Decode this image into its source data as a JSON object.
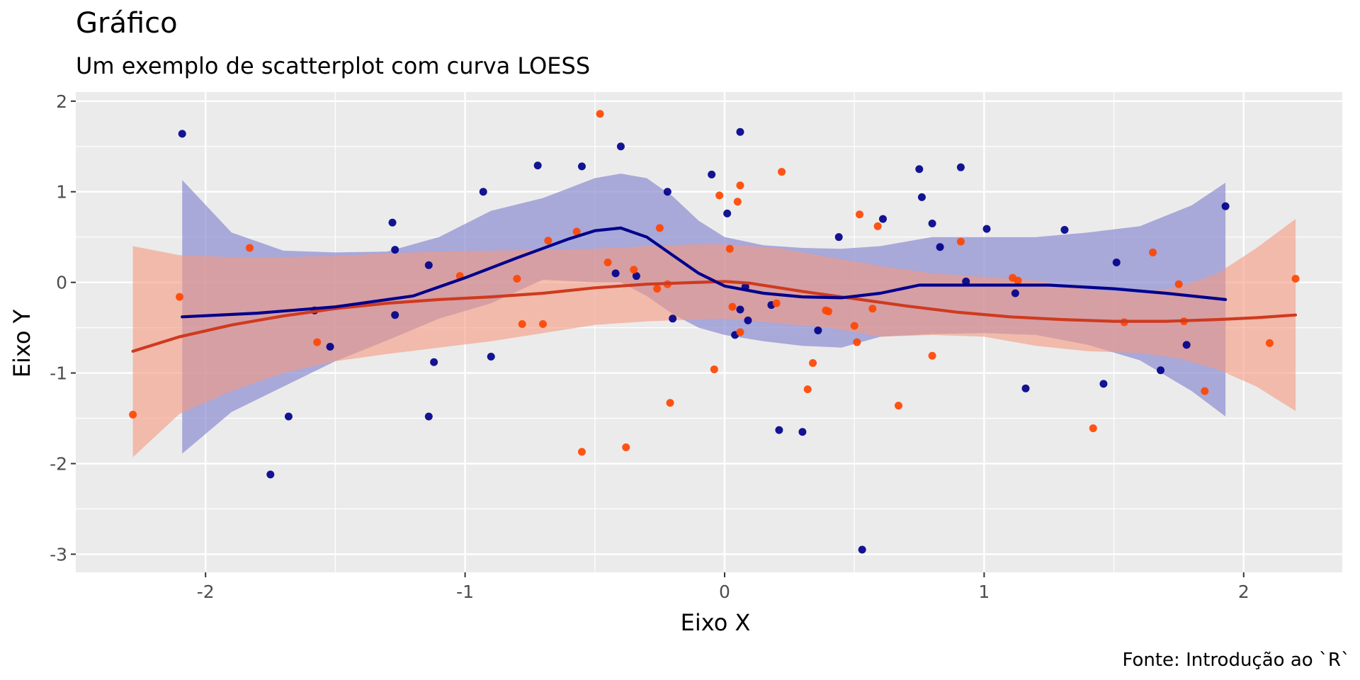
{
  "colors": {
    "group_a": "#00008B",
    "group_b": "#FF4500",
    "panel_bg": "#EBEBEB",
    "grid": "#FFFFFF"
  },
  "chart_data": {
    "type": "scatter",
    "title": "Gráfico",
    "subtitle": "Um exemplo de scatterplot com curva LOESS",
    "xlabel": "Eixo X",
    "ylabel": "Eixo Y",
    "caption": "Fonte: Introdução ao `R`",
    "xlim": [
      -2.5,
      2.38
    ],
    "ylim": [
      -3.2,
      2.1
    ],
    "x_ticks": [
      -2,
      -1,
      0,
      1,
      2
    ],
    "x_tick_labels": [
      "-2",
      "-1",
      "0",
      "1",
      "2"
    ],
    "y_ticks": [
      -3,
      -2,
      -1,
      0,
      1,
      2
    ],
    "y_tick_labels": [
      "-3",
      "-2",
      "-1",
      "0",
      "1",
      "2"
    ],
    "grid": true,
    "legend": "none",
    "series": [
      {
        "color": "#00008B",
        "points": [
          [
            -2.09,
            1.64
          ],
          [
            -1.75,
            -2.12
          ],
          [
            -1.68,
            -1.48
          ],
          [
            -1.58,
            -0.31
          ],
          [
            -1.52,
            -0.71
          ],
          [
            -1.28,
            0.66
          ],
          [
            -1.27,
            0.36
          ],
          [
            -1.27,
            -0.36
          ],
          [
            -1.14,
            0.19
          ],
          [
            -1.14,
            -1.48
          ],
          [
            -1.12,
            -0.88
          ],
          [
            -0.93,
            1.0
          ],
          [
            -0.9,
            -0.82
          ],
          [
            -0.72,
            1.29
          ],
          [
            -0.55,
            1.28
          ],
          [
            -0.4,
            1.5
          ],
          [
            -0.42,
            0.1
          ],
          [
            -0.34,
            0.07
          ],
          [
            -0.22,
            1.0
          ],
          [
            -0.2,
            -0.4
          ],
          [
            -0.05,
            1.19
          ],
          [
            0.01,
            0.76
          ],
          [
            0.04,
            -0.58
          ],
          [
            0.06,
            1.66
          ],
          [
            0.06,
            -0.3
          ],
          [
            0.08,
            -0.05
          ],
          [
            0.09,
            -0.42
          ],
          [
            0.18,
            -0.25
          ],
          [
            0.21,
            -1.63
          ],
          [
            0.3,
            -1.65
          ],
          [
            0.36,
            -0.53
          ],
          [
            0.44,
            0.5
          ],
          [
            0.53,
            -2.95
          ],
          [
            0.61,
            0.7
          ],
          [
            0.75,
            1.25
          ],
          [
            0.76,
            0.94
          ],
          [
            0.8,
            0.65
          ],
          [
            0.83,
            0.39
          ],
          [
            0.91,
            1.27
          ],
          [
            0.93,
            0.01
          ],
          [
            1.01,
            0.59
          ],
          [
            1.12,
            -0.12
          ],
          [
            1.16,
            -1.17
          ],
          [
            1.31,
            0.58
          ],
          [
            1.46,
            -1.12
          ],
          [
            1.51,
            0.22
          ],
          [
            1.68,
            -0.97
          ],
          [
            1.78,
            -0.69
          ],
          [
            1.93,
            0.84
          ]
        ],
        "loess": [
          [
            -2.09,
            -0.38
          ],
          [
            -1.8,
            -0.34
          ],
          [
            -1.5,
            -0.27
          ],
          [
            -1.2,
            -0.15
          ],
          [
            -1.0,
            0.05
          ],
          [
            -0.8,
            0.27
          ],
          [
            -0.6,
            0.48
          ],
          [
            -0.5,
            0.57
          ],
          [
            -0.4,
            0.6
          ],
          [
            -0.3,
            0.5
          ],
          [
            -0.2,
            0.3
          ],
          [
            -0.1,
            0.1
          ],
          [
            0.0,
            -0.04
          ],
          [
            0.15,
            -0.12
          ],
          [
            0.3,
            -0.16
          ],
          [
            0.45,
            -0.17
          ],
          [
            0.6,
            -0.12
          ],
          [
            0.75,
            -0.03
          ],
          [
            1.0,
            -0.03
          ],
          [
            1.25,
            -0.03
          ],
          [
            1.5,
            -0.07
          ],
          [
            1.7,
            -0.12
          ],
          [
            1.93,
            -0.19
          ]
        ],
        "band_upper": [
          [
            -2.09,
            1.13
          ],
          [
            -1.9,
            0.55
          ],
          [
            -1.7,
            0.35
          ],
          [
            -1.5,
            0.33
          ],
          [
            -1.3,
            0.34
          ],
          [
            -1.1,
            0.5
          ],
          [
            -0.9,
            0.79
          ],
          [
            -0.7,
            0.93
          ],
          [
            -0.5,
            1.15
          ],
          [
            -0.4,
            1.2
          ],
          [
            -0.3,
            1.15
          ],
          [
            -0.2,
            0.95
          ],
          [
            -0.1,
            0.68
          ],
          [
            0.0,
            0.5
          ],
          [
            0.15,
            0.41
          ],
          [
            0.3,
            0.38
          ],
          [
            0.45,
            0.37
          ],
          [
            0.6,
            0.4
          ],
          [
            0.8,
            0.5
          ],
          [
            1.0,
            0.5
          ],
          [
            1.2,
            0.5
          ],
          [
            1.4,
            0.55
          ],
          [
            1.6,
            0.62
          ],
          [
            1.8,
            0.85
          ],
          [
            1.93,
            1.1
          ]
        ],
        "band_lower": [
          [
            -2.09,
            -1.89
          ],
          [
            -1.9,
            -1.43
          ],
          [
            -1.7,
            -1.15
          ],
          [
            -1.5,
            -0.87
          ],
          [
            -1.3,
            -0.64
          ],
          [
            -1.1,
            -0.4
          ],
          [
            -0.9,
            -0.23
          ],
          [
            -0.7,
            0.03
          ],
          [
            -0.5,
            0.0
          ],
          [
            -0.4,
            0.0
          ],
          [
            -0.3,
            -0.15
          ],
          [
            -0.2,
            -0.35
          ],
          [
            -0.1,
            -0.5
          ],
          [
            0.0,
            -0.58
          ],
          [
            0.15,
            -0.65
          ],
          [
            0.3,
            -0.7
          ],
          [
            0.45,
            -0.72
          ],
          [
            0.6,
            -0.6
          ],
          [
            0.8,
            -0.57
          ],
          [
            1.0,
            -0.56
          ],
          [
            1.2,
            -0.58
          ],
          [
            1.4,
            -0.69
          ],
          [
            1.6,
            -0.86
          ],
          [
            1.8,
            -1.2
          ],
          [
            1.93,
            -1.48
          ]
        ]
      },
      {
        "color": "#FF4500",
        "points": [
          [
            -2.28,
            -1.46
          ],
          [
            -2.1,
            -0.16
          ],
          [
            -1.83,
            0.38
          ],
          [
            -1.57,
            -0.66
          ],
          [
            -1.02,
            0.07
          ],
          [
            -0.8,
            0.04
          ],
          [
            -0.78,
            -0.46
          ],
          [
            -0.7,
            -0.46
          ],
          [
            -0.68,
            0.46
          ],
          [
            -0.57,
            0.56
          ],
          [
            -0.55,
            -1.87
          ],
          [
            -0.48,
            1.86
          ],
          [
            -0.45,
            0.22
          ],
          [
            -0.38,
            -1.82
          ],
          [
            -0.35,
            0.14
          ],
          [
            -0.26,
            -0.07
          ],
          [
            -0.25,
            0.6
          ],
          [
            -0.22,
            -0.02
          ],
          [
            -0.21,
            -1.33
          ],
          [
            -0.04,
            -0.96
          ],
          [
            -0.02,
            0.96
          ],
          [
            0.02,
            0.37
          ],
          [
            0.03,
            -0.27
          ],
          [
            0.05,
            0.89
          ],
          [
            0.06,
            1.07
          ],
          [
            0.06,
            -0.55
          ],
          [
            0.2,
            -0.23
          ],
          [
            0.22,
            1.22
          ],
          [
            0.32,
            -1.18
          ],
          [
            0.34,
            -0.89
          ],
          [
            0.39,
            -0.31
          ],
          [
            0.4,
            -0.32
          ],
          [
            0.5,
            -0.48
          ],
          [
            0.51,
            -0.66
          ],
          [
            0.52,
            0.75
          ],
          [
            0.57,
            -0.29
          ],
          [
            0.59,
            0.62
          ],
          [
            0.67,
            -1.36
          ],
          [
            0.8,
            -0.81
          ],
          [
            0.91,
            0.45
          ],
          [
            1.11,
            0.05
          ],
          [
            1.13,
            0.02
          ],
          [
            1.42,
            -1.61
          ],
          [
            1.54,
            -0.44
          ],
          [
            1.65,
            0.33
          ],
          [
            1.75,
            -0.02
          ],
          [
            1.77,
            -0.43
          ],
          [
            1.85,
            -1.2
          ],
          [
            2.1,
            -0.67
          ],
          [
            2.2,
            0.04
          ]
        ],
        "loess": [
          [
            -2.28,
            -0.76
          ],
          [
            -2.1,
            -0.6
          ],
          [
            -1.9,
            -0.47
          ],
          [
            -1.7,
            -0.37
          ],
          [
            -1.5,
            -0.29
          ],
          [
            -1.3,
            -0.23
          ],
          [
            -1.1,
            -0.19
          ],
          [
            -0.9,
            -0.16
          ],
          [
            -0.7,
            -0.12
          ],
          [
            -0.5,
            -0.06
          ],
          [
            -0.3,
            -0.02
          ],
          [
            -0.1,
            0.0
          ],
          [
            0.0,
            0.01
          ],
          [
            0.1,
            -0.01
          ],
          [
            0.3,
            -0.1
          ],
          [
            0.5,
            -0.18
          ],
          [
            0.7,
            -0.26
          ],
          [
            0.9,
            -0.33
          ],
          [
            1.1,
            -0.38
          ],
          [
            1.3,
            -0.41
          ],
          [
            1.5,
            -0.43
          ],
          [
            1.7,
            -0.43
          ],
          [
            1.9,
            -0.41
          ],
          [
            2.05,
            -0.39
          ],
          [
            2.2,
            -0.36
          ]
        ],
        "band_upper": [
          [
            -2.28,
            0.4
          ],
          [
            -2.1,
            0.3
          ],
          [
            -1.9,
            0.28
          ],
          [
            -1.7,
            0.28
          ],
          [
            -1.5,
            0.29
          ],
          [
            -1.3,
            0.32
          ],
          [
            -1.1,
            0.34
          ],
          [
            -0.9,
            0.35
          ],
          [
            -0.7,
            0.36
          ],
          [
            -0.5,
            0.37
          ],
          [
            -0.3,
            0.4
          ],
          [
            -0.1,
            0.42
          ],
          [
            0.0,
            0.42
          ],
          [
            0.2,
            0.38
          ],
          [
            0.4,
            0.28
          ],
          [
            0.6,
            0.18
          ],
          [
            0.8,
            0.1
          ],
          [
            1.0,
            0.06
          ],
          [
            1.2,
            0.02
          ],
          [
            1.4,
            -0.08
          ],
          [
            1.6,
            -0.12
          ],
          [
            1.75,
            -0.05
          ],
          [
            1.9,
            0.1
          ],
          [
            2.05,
            0.38
          ],
          [
            2.2,
            0.7
          ]
        ],
        "band_lower": [
          [
            -2.28,
            -1.93
          ],
          [
            -2.1,
            -1.45
          ],
          [
            -1.9,
            -1.2
          ],
          [
            -1.7,
            -1.0
          ],
          [
            -1.5,
            -0.87
          ],
          [
            -1.3,
            -0.79
          ],
          [
            -1.1,
            -0.72
          ],
          [
            -0.9,
            -0.65
          ],
          [
            -0.7,
            -0.56
          ],
          [
            -0.5,
            -0.47
          ],
          [
            -0.3,
            -0.43
          ],
          [
            -0.1,
            -0.41
          ],
          [
            0.0,
            -0.4
          ],
          [
            0.2,
            -0.45
          ],
          [
            0.4,
            -0.5
          ],
          [
            0.6,
            -0.6
          ],
          [
            0.8,
            -0.58
          ],
          [
            1.0,
            -0.6
          ],
          [
            1.2,
            -0.7
          ],
          [
            1.4,
            -0.76
          ],
          [
            1.6,
            -0.78
          ],
          [
            1.75,
            -0.84
          ],
          [
            1.9,
            -0.96
          ],
          [
            2.05,
            -1.15
          ],
          [
            2.2,
            -1.42
          ]
        ]
      }
    ]
  }
}
